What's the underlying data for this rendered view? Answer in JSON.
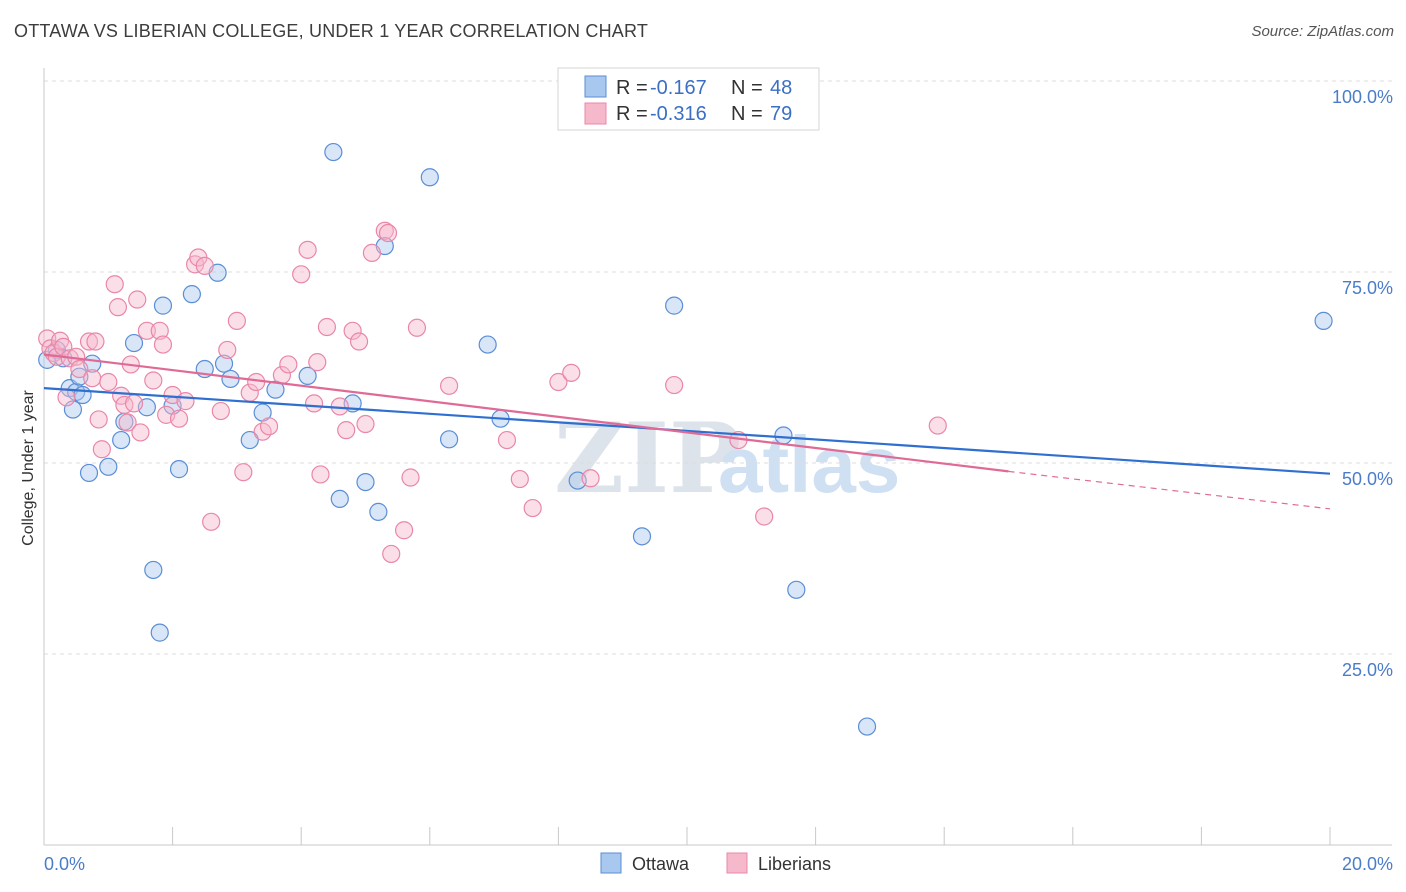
{
  "title": "OTTAWA VS LIBERIAN COLLEGE, UNDER 1 YEAR CORRELATION CHART",
  "source": "Source: ZipAtlas.com",
  "watermark": {
    "zip": "ZIP",
    "atlas": "atlas"
  },
  "legend": {
    "rows": [
      {
        "r_label": "R =",
        "r_value": "-0.167",
        "n_label": "N =",
        "n_value": "48"
      },
      {
        "r_label": "R =",
        "r_value": "-0.316",
        "n_label": "N =",
        "n_value": "79"
      }
    ]
  },
  "bottom_legend": [
    "Ottawa",
    "Liberians"
  ],
  "chart_data": {
    "type": "scatter",
    "title": "OTTAWA VS LIBERIAN COLLEGE, UNDER 1 YEAR CORRELATION CHART",
    "xlabel": "",
    "ylabel": "College, Under 1 year",
    "xlim": [
      0,
      20
    ],
    "ylim": [
      2.5,
      105
    ],
    "x_tick_labels": [
      {
        "value": 0,
        "label": "0.0%"
      },
      {
        "value": 20,
        "label": "20.0%"
      }
    ],
    "y_tick_labels": [
      {
        "value": 25,
        "label": "25.0%"
      },
      {
        "value": 50,
        "label": "50.0%"
      },
      {
        "value": 75,
        "label": "75.0%"
      },
      {
        "value": 100,
        "label": "100.0%"
      }
    ],
    "grid": true,
    "colors": {
      "ottawa_fill": "#a9c8ef",
      "ottawa_stroke": "#5a8ed6",
      "ottawa_line": "#2f6fcf",
      "liberians_fill": "#f6b8cb",
      "liberians_stroke": "#e987a8",
      "liberians_line": "#e06a96",
      "tick_text": "#4a7cc9",
      "grid": "#dcdcdc"
    },
    "series": [
      {
        "name": "Ottawa",
        "r": -0.167,
        "n": 48,
        "trend": {
          "x": [
            0,
            20
          ],
          "y": [
            59.8,
            48.6
          ]
        },
        "points": [
          [
            0.05,
            63.5
          ],
          [
            0.2,
            64.8
          ],
          [
            0.3,
            63.7
          ],
          [
            0.4,
            59.8
          ],
          [
            0.45,
            57.0
          ],
          [
            0.5,
            59.3
          ],
          [
            0.55,
            61.3
          ],
          [
            0.6,
            58.9
          ],
          [
            0.7,
            48.7
          ],
          [
            0.75,
            63.0
          ],
          [
            1.0,
            49.5
          ],
          [
            1.2,
            53.0
          ],
          [
            1.25,
            55.4
          ],
          [
            1.4,
            65.7
          ],
          [
            1.6,
            57.3
          ],
          [
            1.7,
            36.0
          ],
          [
            1.8,
            27.8
          ],
          [
            1.85,
            70.6
          ],
          [
            2.0,
            57.5
          ],
          [
            2.1,
            49.2
          ],
          [
            2.3,
            72.1
          ],
          [
            2.5,
            62.3
          ],
          [
            2.7,
            74.9
          ],
          [
            2.8,
            63.0
          ],
          [
            2.9,
            61.0
          ],
          [
            3.2,
            53.0
          ],
          [
            3.4,
            56.6
          ],
          [
            3.6,
            59.6
          ],
          [
            4.1,
            61.4
          ],
          [
            4.5,
            90.7
          ],
          [
            4.6,
            45.3
          ],
          [
            4.8,
            57.8
          ],
          [
            5.0,
            47.5
          ],
          [
            5.2,
            43.6
          ],
          [
            5.3,
            78.4
          ],
          [
            6.0,
            87.4
          ],
          [
            6.3,
            53.1
          ],
          [
            6.9,
            65.5
          ],
          [
            7.1,
            55.8
          ],
          [
            8.3,
            47.7
          ],
          [
            9.3,
            40.4
          ],
          [
            9.8,
            70.6
          ],
          [
            11.5,
            53.6
          ],
          [
            11.7,
            33.4
          ],
          [
            12.8,
            15.5
          ],
          [
            19.9,
            68.6
          ]
        ]
      },
      {
        "name": "Liberians",
        "r": -0.316,
        "n": 79,
        "trend": {
          "x": [
            0,
            15
          ],
          "y": [
            64.2,
            48.9
          ]
        },
        "trend_dashed": {
          "x": [
            15,
            20
          ],
          "y": [
            48.9,
            44.0
          ]
        },
        "points": [
          [
            0.05,
            66.3
          ],
          [
            0.1,
            65.0
          ],
          [
            0.15,
            64.4
          ],
          [
            0.2,
            63.9
          ],
          [
            0.25,
            66.0
          ],
          [
            0.3,
            65.2
          ],
          [
            0.35,
            58.6
          ],
          [
            0.4,
            63.7
          ],
          [
            0.5,
            63.9
          ],
          [
            0.55,
            62.3
          ],
          [
            0.7,
            65.9
          ],
          [
            0.75,
            61.1
          ],
          [
            0.8,
            65.9
          ],
          [
            0.85,
            55.7
          ],
          [
            0.9,
            51.8
          ],
          [
            1.0,
            60.6
          ],
          [
            1.1,
            73.4
          ],
          [
            1.15,
            70.4
          ],
          [
            1.2,
            58.8
          ],
          [
            1.25,
            57.6
          ],
          [
            1.3,
            55.3
          ],
          [
            1.35,
            62.9
          ],
          [
            1.4,
            57.8
          ],
          [
            1.45,
            71.4
          ],
          [
            1.5,
            54.0
          ],
          [
            1.6,
            67.3
          ],
          [
            1.7,
            60.8
          ],
          [
            1.8,
            67.3
          ],
          [
            1.85,
            65.5
          ],
          [
            1.9,
            56.3
          ],
          [
            2.0,
            58.9
          ],
          [
            2.1,
            55.8
          ],
          [
            2.2,
            58.1
          ],
          [
            2.35,
            76.0
          ],
          [
            2.4,
            76.9
          ],
          [
            2.5,
            75.8
          ],
          [
            2.6,
            42.3
          ],
          [
            2.75,
            56.8
          ],
          [
            2.85,
            64.8
          ],
          [
            3.0,
            68.6
          ],
          [
            3.1,
            48.8
          ],
          [
            3.2,
            59.2
          ],
          [
            3.3,
            60.6
          ],
          [
            3.4,
            54.1
          ],
          [
            3.5,
            54.8
          ],
          [
            3.7,
            61.5
          ],
          [
            3.8,
            62.9
          ],
          [
            4.0,
            74.7
          ],
          [
            4.1,
            77.9
          ],
          [
            4.2,
            57.8
          ],
          [
            4.25,
            63.2
          ],
          [
            4.3,
            48.5
          ],
          [
            4.4,
            67.8
          ],
          [
            4.6,
            57.4
          ],
          [
            4.7,
            54.3
          ],
          [
            4.8,
            67.3
          ],
          [
            4.9,
            65.9
          ],
          [
            5.0,
            55.1
          ],
          [
            5.1,
            77.5
          ],
          [
            5.3,
            80.4
          ],
          [
            5.35,
            80.1
          ],
          [
            5.4,
            38.1
          ],
          [
            5.6,
            41.2
          ],
          [
            5.7,
            48.1
          ],
          [
            5.8,
            67.7
          ],
          [
            6.3,
            60.1
          ],
          [
            7.2,
            53.0
          ],
          [
            7.4,
            47.9
          ],
          [
            7.6,
            44.1
          ],
          [
            8.0,
            60.6
          ],
          [
            8.2,
            61.8
          ],
          [
            8.5,
            48.0
          ],
          [
            9.8,
            60.2
          ],
          [
            10.8,
            53.0
          ],
          [
            11.2,
            43.0
          ],
          [
            13.9,
            54.9
          ]
        ]
      }
    ]
  }
}
